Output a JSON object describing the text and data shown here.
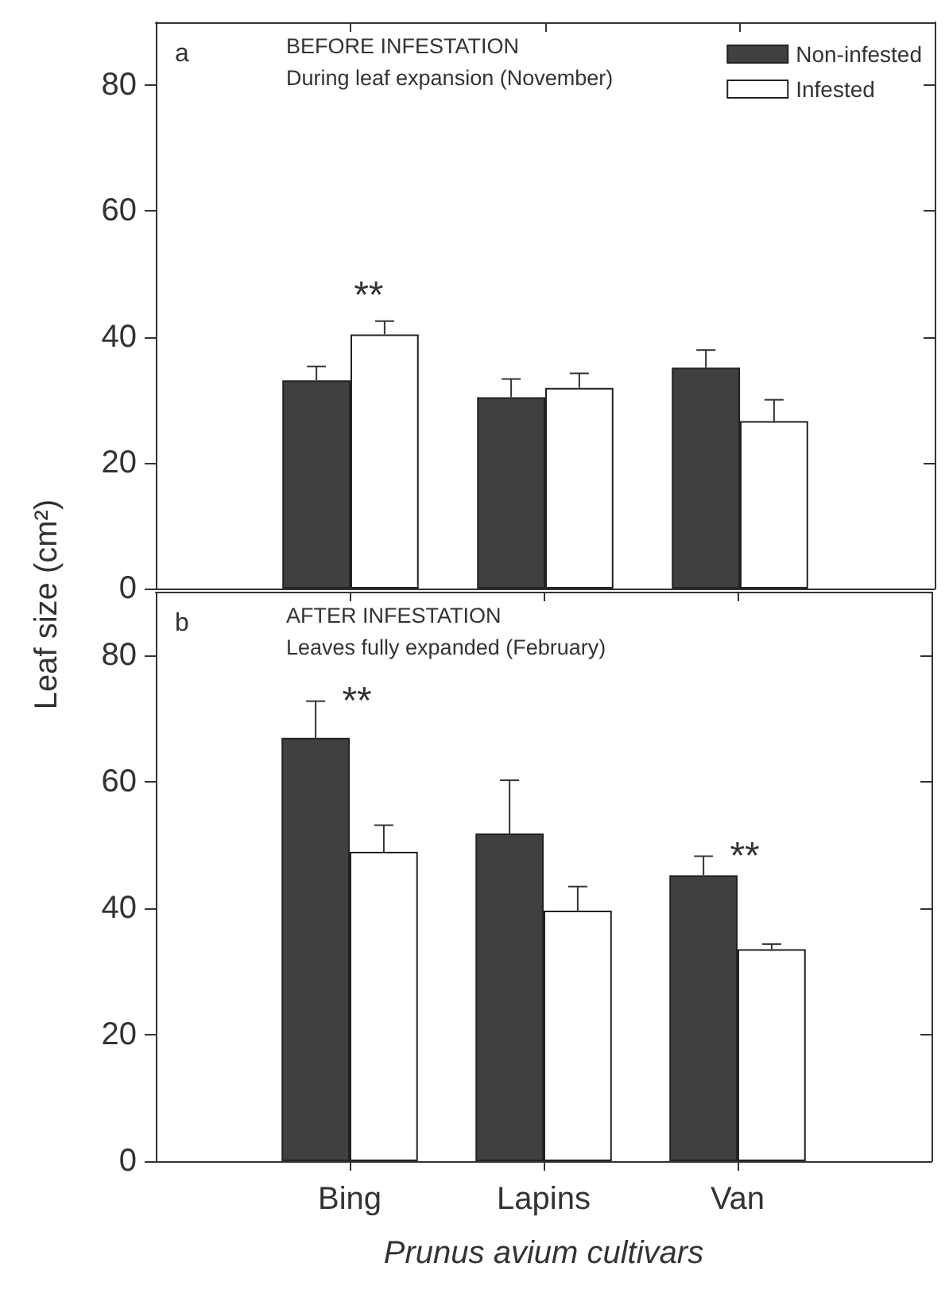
{
  "chart_data": [
    {
      "type": "bar",
      "ylabel": "Leaf size (cm²)",
      "categories": [
        null,
        null,
        null
      ],
      "series": [
        {
          "name": "Non-infested",
          "color": "#404040",
          "values": [
            33.1,
            30.4,
            35.1
          ],
          "errors": [
            2.2,
            2.9,
            2.8
          ]
        },
        {
          "name": "Infested",
          "color": "#ffffff",
          "values": [
            40.4,
            31.9,
            26.6
          ],
          "errors": [
            2.1,
            2.3,
            3.4
          ],
          "value_labels": [
            "**",
            null,
            null
          ]
        }
      ],
      "ylim": [
        0,
        90
      ],
      "yticks": [
        0,
        20,
        40,
        60,
        80
      ],
      "legend": "top right",
      "tick_labels": "y",
      "annotations": [
        "a",
        "BEFORE INFESTATION",
        "During leaf expansion (November)"
      ]
    },
    {
      "type": "bar",
      "xlabel": "Prunus avium cultivars",
      "categories": [
        "Bing",
        "Lapins",
        "Van"
      ],
      "series": [
        {
          "color": "#404040",
          "values": [
            66.9,
            51.8,
            45.2
          ],
          "errors": [
            5.8,
            8.4,
            3.0
          ],
          "value_labels": [
            "**",
            null,
            "**"
          ]
        },
        {
          "color": "#ffffff",
          "values": [
            48.9,
            39.6,
            33.5
          ],
          "errors": [
            4.2,
            3.8,
            0.8
          ]
        }
      ],
      "ylim": [
        0,
        90
      ],
      "yticks": [
        0,
        20,
        40,
        60,
        80
      ],
      "annotations": [
        "b",
        "AFTER INFESTATION",
        "Leaves fully expanded (February)"
      ]
    }
  ]
}
